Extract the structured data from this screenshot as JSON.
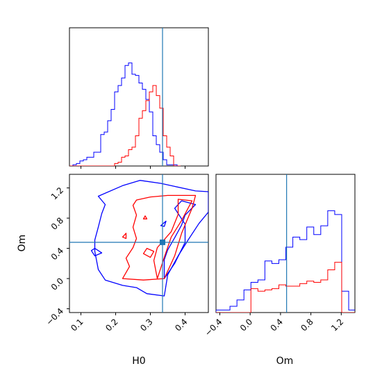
{
  "chart_data": {
    "type": "corner",
    "colors": {
      "blue": "#0000ff",
      "red": "#ff0000",
      "truth": "#1f77b4"
    },
    "truth": {
      "H0": 0.335,
      "Om": 0.48
    },
    "labels": {
      "x_bottom_left": "H0",
      "y_bottom_left": "Om",
      "x_bottom_right": "Om"
    },
    "h0_ticks": [
      "0.1",
      "0.2",
      "0.3",
      "0.4"
    ],
    "om_ticks": [
      "−0.4",
      "0.0",
      "0.4",
      "0.8",
      "1.2"
    ],
    "om_tick_values": [
      -0.4,
      0.0,
      0.4,
      0.8,
      1.2
    ],
    "h0_tick_values": [
      0.1,
      0.2,
      0.3,
      0.4
    ],
    "h0_range": [
      0.067,
      0.467
    ],
    "om_range": [
      -0.45,
      1.38
    ],
    "hist_h0": {
      "bin_start": 0.067,
      "bin_width": 0.01,
      "blue": [
        0.0,
        0.01,
        0.02,
        0.04,
        0.05,
        0.07,
        0.07,
        0.11,
        0.11,
        0.25,
        0.27,
        0.36,
        0.45,
        0.59,
        0.64,
        0.7,
        0.8,
        0.82,
        0.73,
        0.72,
        0.66,
        0.61,
        0.53,
        0.43,
        0.24,
        0.17,
        0.11,
        0.05,
        0.01,
        0.01,
        0.01,
        0.0
      ],
      "red": [
        0.0,
        0.0,
        0.0,
        0.0,
        0.0,
        0.0,
        0.0,
        0.0,
        0.0,
        0.0,
        0.0,
        0.0,
        0.0,
        0.02,
        0.03,
        0.07,
        0.08,
        0.13,
        0.15,
        0.24,
        0.38,
        0.44,
        0.52,
        0.59,
        0.64,
        0.56,
        0.46,
        0.24,
        0.15,
        0.08,
        0.0,
        0.0
      ]
    },
    "hist_om": {
      "bin_start": -0.45,
      "bin_width": 0.092,
      "blue": [
        0.02,
        0.02,
        0.05,
        0.1,
        0.18,
        0.24,
        0.26,
        0.41,
        0.39,
        0.42,
        0.52,
        0.6,
        0.58,
        0.68,
        0.62,
        0.69,
        0.81,
        0.78,
        0.17,
        0.02,
        0.0
      ],
      "red": [
        0.0,
        0.0,
        0.0,
        0.0,
        0.0,
        0.19,
        0.17,
        0.18,
        0.19,
        0.22,
        0.21,
        0.21,
        0.23,
        0.25,
        0.24,
        0.26,
        0.34,
        0.4,
        0.0,
        0.0,
        0.0
      ]
    },
    "contours": {
      "blue_outer": [
        [
          0.22,
          1.23
        ],
        [
          0.27,
          1.3
        ],
        [
          0.33,
          1.26
        ],
        [
          0.37,
          1.22
        ],
        [
          0.43,
          1.16
        ],
        [
          0.467,
          1.15
        ],
        [
          0.467,
          0.88
        ],
        [
          0.44,
          0.73
        ],
        [
          0.41,
          0.52
        ],
        [
          0.38,
          0.3
        ],
        [
          0.35,
          0.05
        ],
        [
          0.34,
          -0.23
        ],
        [
          0.29,
          -0.2
        ],
        [
          0.26,
          -0.12
        ],
        [
          0.22,
          -0.09
        ],
        [
          0.17,
          -0.02
        ],
        [
          0.15,
          0.12
        ],
        [
          0.14,
          0.36
        ],
        [
          0.14,
          0.51
        ],
        [
          0.15,
          0.68
        ],
        [
          0.16,
          0.86
        ],
        [
          0.17,
          0.98
        ],
        [
          0.15,
          1.09
        ]
      ],
      "blue_hole": [
        [
          0.13,
          0.37
        ],
        [
          0.14,
          0.3
        ],
        [
          0.16,
          0.34
        ],
        [
          0.14,
          0.4
        ]
      ],
      "blue_inner": [
        [
          0.39,
          1.03
        ],
        [
          0.43,
          0.98
        ],
        [
          0.4,
          0.84
        ],
        [
          0.39,
          0.71
        ],
        [
          0.37,
          0.54
        ],
        [
          0.35,
          0.38
        ],
        [
          0.34,
          0.25
        ],
        [
          0.34,
          0.0
        ],
        [
          0.37,
          0.2
        ],
        [
          0.4,
          0.48
        ],
        [
          0.4,
          0.72
        ],
        [
          0.37,
          0.93
        ]
      ],
      "blue_blob": [
        [
          0.33,
          0.7
        ],
        [
          0.345,
          0.76
        ],
        [
          0.34,
          0.69
        ]
      ],
      "red_outer": [
        [
          0.26,
          1.04
        ],
        [
          0.3,
          1.08
        ],
        [
          0.35,
          1.1
        ],
        [
          0.43,
          1.1
        ],
        [
          0.42,
          0.93
        ],
        [
          0.39,
          0.6
        ],
        [
          0.37,
          0.3
        ],
        [
          0.34,
          0.0
        ],
        [
          0.28,
          -0.02
        ],
        [
          0.22,
          0.0
        ],
        [
          0.24,
          0.16
        ],
        [
          0.23,
          0.27
        ],
        [
          0.25,
          0.41
        ],
        [
          0.26,
          0.53
        ],
        [
          0.25,
          0.68
        ],
        [
          0.26,
          0.84
        ],
        [
          0.25,
          0.97
        ]
      ],
      "red_inner": [
        [
          0.38,
          1.05
        ],
        [
          0.42,
          1.03
        ],
        [
          0.39,
          0.77
        ],
        [
          0.36,
          0.55
        ],
        [
          0.34,
          0.28
        ],
        [
          0.32,
          0.0
        ],
        [
          0.31,
          0.24
        ],
        [
          0.32,
          0.41
        ],
        [
          0.36,
          0.62
        ],
        [
          0.38,
          0.85
        ]
      ],
      "red_blob": [
        [
          0.22,
          0.55
        ],
        [
          0.23,
          0.6
        ],
        [
          0.23,
          0.53
        ]
      ],
      "red_spot": [
        [
          0.28,
          0.79
        ],
        [
          0.285,
          0.83
        ],
        [
          0.29,
          0.79
        ]
      ],
      "red_hole": [
        [
          0.28,
          0.33
        ],
        [
          0.3,
          0.28
        ],
        [
          0.31,
          0.36
        ],
        [
          0.29,
          0.4
        ]
      ]
    }
  }
}
